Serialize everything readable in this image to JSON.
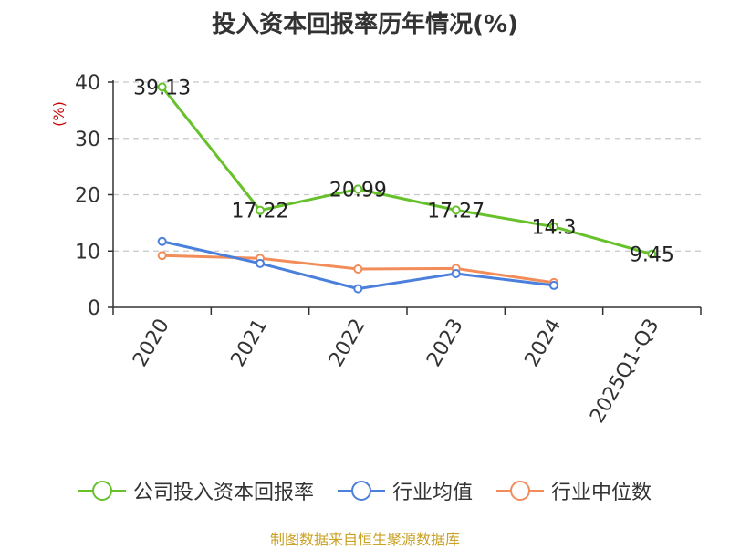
{
  "title": "投入资本回报率历年情况(%)",
  "source": "制图数据来自恒生聚源数据库",
  "colors": {
    "company": "#66c12b",
    "industry_avg": "#4a7fdc",
    "industry_median": "#f28d5a",
    "grid": "#c8c8c8",
    "axis": "#333333",
    "unit": "#cc0000"
  },
  "chart_data": {
    "type": "line",
    "title": "投入资本回报率历年情况(%)",
    "xlabel": "",
    "ylabel": "(%)",
    "ylim": [
      0,
      40
    ],
    "yticks": [
      0,
      10,
      20,
      30,
      40
    ],
    "grid": true,
    "legend_position": "bottom",
    "categories": [
      "2020",
      "2021",
      "2022",
      "2023",
      "2024",
      "2025Q1-Q3"
    ],
    "series": [
      {
        "name": "公司投入资本回报率",
        "color_key": "company",
        "values": [
          39.13,
          17.22,
          20.99,
          17.27,
          14.3,
          9.45
        ],
        "show_labels": true
      },
      {
        "name": "行业均值",
        "color_key": "industry_avg",
        "values": [
          11.7,
          7.8,
          3.3,
          6.0,
          3.9,
          null
        ],
        "show_labels": false
      },
      {
        "name": "行业中位数",
        "color_key": "industry_median",
        "values": [
          9.2,
          8.7,
          6.8,
          6.9,
          4.4,
          null
        ],
        "show_labels": false
      }
    ]
  }
}
